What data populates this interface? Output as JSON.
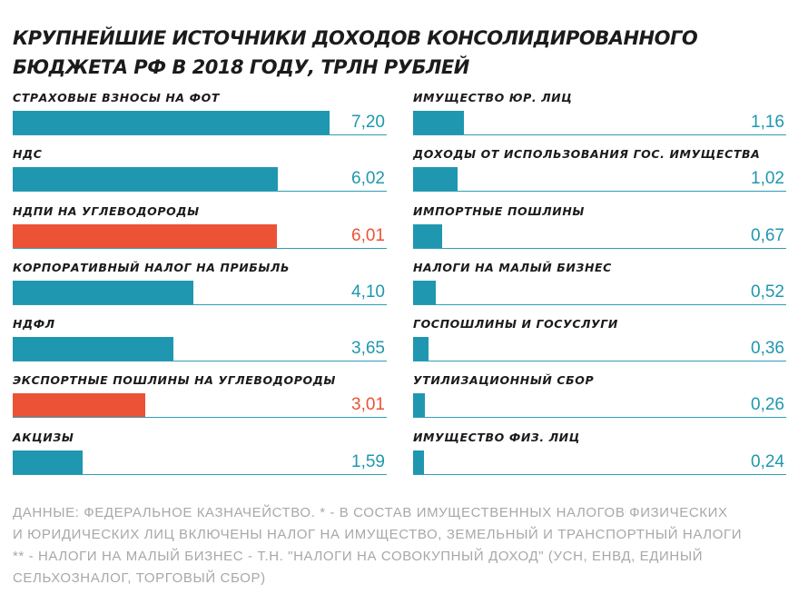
{
  "title_line1": "КРУПНЕЙШИЕ ИСТОЧНИКИ ДОХОДОВ КОНСОЛИДИРОВАННОГО",
  "title_line2": "БЮДЖЕТА РФ В 2018 ГОДУ, ТРЛН РУБЛЕЙ",
  "colors": {
    "main": "#1f97b0",
    "highlight": "#ec5236",
    "axis_line": "#2f9db5"
  },
  "footnote": [
    "ДАННЫЕ: ФЕДЕРАЛЬНОЕ КАЗНАЧЕЙСТВО. * - В СОСТАВ ИМУЩЕСТВЕННЫХ НАЛОГОВ ФИЗИЧЕСКИХ",
    "И ЮРИДИЧЕСКИХ ЛИЦ ВКЛЮЧЕНЫ НАЛОГ НА ИМУЩЕСТВО, ЗЕМЕЛЬНЫЙ И ТРАНСПОРТНЫЙ НАЛОГИ",
    "** - НАЛОГИ НА МАЛЫЙ БИЗНЕС - Т.Н. \"НАЛОГИ НА СОВОКУПНЫЙ ДОХОД\" (УСН, ЕНВД, ЕДИНЫЙ",
    "СЕЛЬХОЗНАЛОГ, ТОРГОВЫЙ СБОР)"
  ],
  "chart_data": {
    "type": "bar",
    "orientation": "horizontal",
    "title": "КРУПНЕЙШИЕ ИСТОЧНИКИ ДОХОДОВ КОНСОЛИДИРОВАННОГО БЮДЖЕТА РФ В 2018 ГОДУ, ТРЛН РУБЛЕЙ",
    "xlim": [
      0,
      8.5
    ],
    "grid": false,
    "legend": "none",
    "columns": [
      [
        {
          "label": "СТРАХОВЫЕ ВЗНОСЫ НА ФОТ",
          "value": 7.2,
          "value_label": "7,20",
          "highlight": false
        },
        {
          "label": "НДС",
          "value": 6.02,
          "value_label": "6,02",
          "highlight": false
        },
        {
          "label": "НДПИ НА УГЛЕВОДОРОДЫ",
          "value": 6.01,
          "value_label": "6,01",
          "highlight": true
        },
        {
          "label": "КОРПОРАТИВНЫЙ НАЛОГ НА ПРИБЫЛЬ",
          "value": 4.1,
          "value_label": "4,10",
          "highlight": false
        },
        {
          "label": "НДФЛ",
          "value": 3.65,
          "value_label": "3,65",
          "highlight": false
        },
        {
          "label": "ЭКСПОРТНЫЕ ПОШЛИНЫ НА УГЛЕВОДОРОДЫ",
          "value": 3.01,
          "value_label": "3,01",
          "highlight": true
        },
        {
          "label": "АКЦИЗЫ",
          "value": 1.59,
          "value_label": "1,59",
          "highlight": false
        }
      ],
      [
        {
          "label": "ИМУЩЕСТВО ЮР. ЛИЦ",
          "value": 1.16,
          "value_label": "1,16",
          "highlight": false
        },
        {
          "label": "ДОХОДЫ ОТ ИСПОЛЬЗОВАНИЯ ГОС. ИМУЩЕСТВА",
          "value": 1.02,
          "value_label": "1,02",
          "highlight": false
        },
        {
          "label": "ИМПОРТНЫЕ ПОШЛИНЫ",
          "value": 0.67,
          "value_label": "0,67",
          "highlight": false
        },
        {
          "label": "НАЛОГИ НА МАЛЫЙ БИЗНЕС",
          "value": 0.52,
          "value_label": "0,52",
          "highlight": false
        },
        {
          "label": "ГОСПОШЛИНЫ И ГОСУСЛУГИ",
          "value": 0.36,
          "value_label": "0,36",
          "highlight": false
        },
        {
          "label": "УТИЛИЗАЦИОННЫЙ СБОР",
          "value": 0.26,
          "value_label": "0,26",
          "highlight": false
        },
        {
          "label": "ИМУЩЕСТВО ФИЗ. ЛИЦ",
          "value": 0.24,
          "value_label": "0,24",
          "highlight": false
        }
      ]
    ]
  }
}
